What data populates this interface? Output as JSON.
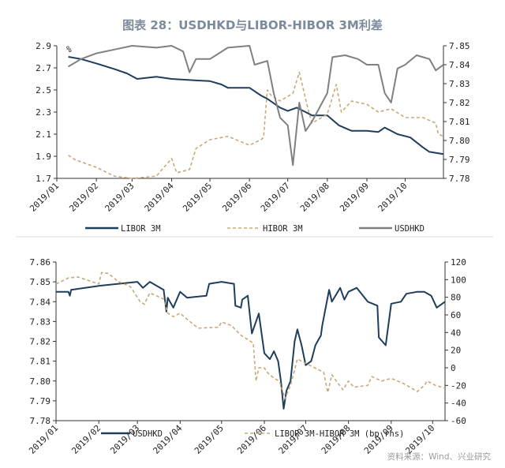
{
  "title": "图表 28：USDHKD与LIBOR-HIBOR 3M利差",
  "source": "资料来源：Wind、兴业研究",
  "chart_data": [
    {
      "type": "line",
      "unit_label": "%",
      "x_ticks": [
        "2019/01",
        "2019/02",
        "2019/03",
        "2019/04",
        "2019/05",
        "2019/06",
        "2019/07",
        "2019/08",
        "2019/09",
        "2019/10"
      ],
      "xlim": [
        "2019-01-01",
        "2019-10-31"
      ],
      "ylim_left": [
        1.7,
        2.9
      ],
      "yticks_left": [
        "1.7",
        "1.9",
        "2.1",
        "2.3",
        "2.5",
        "2.7",
        "2.9"
      ],
      "ylim_right": [
        7.78,
        7.85
      ],
      "yticks_right": [
        "7.78",
        "7.79",
        "7.80",
        "7.81",
        "7.82",
        "7.83",
        "7.84",
        "7.85"
      ],
      "legend_placement": "bottom",
      "grid": false,
      "series": [
        {
          "name": "LIBOR 3M",
          "axis": "left",
          "color": "#1f3d5c",
          "dash": false,
          "points": [
            [
              "2019-01-10",
              2.8
            ],
            [
              "2019-01-20",
              2.78
            ],
            [
              "2019-02-01",
              2.74
            ],
            [
              "2019-02-15",
              2.69
            ],
            [
              "2019-02-25",
              2.65
            ],
            [
              "2019-03-05",
              2.6
            ],
            [
              "2019-03-20",
              2.62
            ],
            [
              "2019-04-01",
              2.6
            ],
            [
              "2019-04-15",
              2.59
            ],
            [
              "2019-05-01",
              2.58
            ],
            [
              "2019-05-10",
              2.55
            ],
            [
              "2019-05-15",
              2.52
            ],
            [
              "2019-06-01",
              2.52
            ],
            [
              "2019-06-10",
              2.45
            ],
            [
              "2019-06-15",
              2.42
            ],
            [
              "2019-06-25",
              2.34
            ],
            [
              "2019-07-01",
              2.31
            ],
            [
              "2019-07-08",
              2.34
            ],
            [
              "2019-07-15",
              2.3
            ],
            [
              "2019-07-20",
              2.27
            ],
            [
              "2019-08-01",
              2.27
            ],
            [
              "2019-08-10",
              2.18
            ],
            [
              "2019-08-20",
              2.13
            ],
            [
              "2019-09-01",
              2.13
            ],
            [
              "2019-09-10",
              2.12
            ],
            [
              "2019-09-15",
              2.16
            ],
            [
              "2019-09-25",
              2.1
            ],
            [
              "2019-10-05",
              2.07
            ],
            [
              "2019-10-15",
              1.98
            ],
            [
              "2019-10-20",
              1.94
            ],
            [
              "2019-10-31",
              1.92
            ]
          ]
        },
        {
          "name": "HIBOR 3M",
          "axis": "left",
          "color": "#c9a878",
          "dash": true,
          "points": [
            [
              "2019-01-10",
              1.91
            ],
            [
              "2019-01-15",
              1.87
            ],
            [
              "2019-02-01",
              1.8
            ],
            [
              "2019-02-15",
              1.72
            ],
            [
              "2019-03-01",
              1.7
            ],
            [
              "2019-03-20",
              1.72
            ],
            [
              "2019-04-01",
              1.88
            ],
            [
              "2019-04-05",
              1.75
            ],
            [
              "2019-04-15",
              1.78
            ],
            [
              "2019-04-20",
              1.97
            ],
            [
              "2019-05-01",
              2.05
            ],
            [
              "2019-05-15",
              2.08
            ],
            [
              "2019-06-01",
              2.0
            ],
            [
              "2019-06-10",
              2.05
            ],
            [
              "2019-06-12",
              2.07
            ],
            [
              "2019-06-15",
              2.5
            ],
            [
              "2019-06-18",
              2.45
            ],
            [
              "2019-06-25",
              2.4
            ],
            [
              "2019-07-05",
              2.47
            ],
            [
              "2019-07-10",
              2.66
            ],
            [
              "2019-07-17",
              2.32
            ],
            [
              "2019-07-20",
              2.2
            ],
            [
              "2019-08-01",
              2.28
            ],
            [
              "2019-08-08",
              2.55
            ],
            [
              "2019-08-12",
              2.3
            ],
            [
              "2019-08-20",
              2.4
            ],
            [
              "2019-09-01",
              2.37
            ],
            [
              "2019-09-10",
              2.3
            ],
            [
              "2019-09-20",
              2.33
            ],
            [
              "2019-10-01",
              2.25
            ],
            [
              "2019-10-15",
              2.25
            ],
            [
              "2019-10-25",
              2.2
            ],
            [
              "2019-10-27",
              2.1
            ],
            [
              "2019-10-31",
              2.08
            ]
          ]
        },
        {
          "name": "USDHKD",
          "axis": "right",
          "color": "#808080",
          "dash": false,
          "points": [
            [
              "2019-01-10",
              7.839
            ],
            [
              "2019-01-20",
              7.843
            ],
            [
              "2019-02-01",
              7.846
            ],
            [
              "2019-02-15",
              7.848
            ],
            [
              "2019-03-01",
              7.85
            ],
            [
              "2019-03-20",
              7.849
            ],
            [
              "2019-04-01",
              7.85
            ],
            [
              "2019-04-10",
              7.847
            ],
            [
              "2019-04-15",
              7.836
            ],
            [
              "2019-04-20",
              7.843
            ],
            [
              "2019-05-01",
              7.843
            ],
            [
              "2019-05-15",
              7.849
            ],
            [
              "2019-06-01",
              7.85
            ],
            [
              "2019-06-05",
              7.84
            ],
            [
              "2019-06-15",
              7.842
            ],
            [
              "2019-06-20",
              7.825
            ],
            [
              "2019-06-25",
              7.812
            ],
            [
              "2019-07-01",
              7.808
            ],
            [
              "2019-07-05",
              7.787
            ],
            [
              "2019-07-10",
              7.82
            ],
            [
              "2019-07-15",
              7.805
            ],
            [
              "2019-07-20",
              7.81
            ],
            [
              "2019-08-01",
              7.825
            ],
            [
              "2019-08-05",
              7.844
            ],
            [
              "2019-08-15",
              7.845
            ],
            [
              "2019-08-25",
              7.843
            ],
            [
              "2019-09-01",
              7.84
            ],
            [
              "2019-09-10",
              7.84
            ],
            [
              "2019-09-15",
              7.825
            ],
            [
              "2019-09-20",
              7.82
            ],
            [
              "2019-09-25",
              7.838
            ],
            [
              "2019-10-01",
              7.84
            ],
            [
              "2019-10-10",
              7.845
            ],
            [
              "2019-10-20",
              7.843
            ],
            [
              "2019-10-25",
              7.837
            ],
            [
              "2019-10-31",
              7.84
            ]
          ]
        }
      ]
    },
    {
      "type": "line",
      "x_ticks": [
        "2019/01",
        "2019/02",
        "2019/03",
        "2019/04",
        "2019/05",
        "2019/06",
        "2019/07",
        "2019/08",
        "2019/09",
        "2019/10"
      ],
      "xlim": [
        "2019-01-01",
        "2019-10-10"
      ],
      "ylim_left": [
        7.78,
        7.86
      ],
      "yticks_left": [
        "7.78",
        "7.79",
        "7.80",
        "7.81",
        "7.82",
        "7.83",
        "7.84",
        "7.85",
        "7.86"
      ],
      "ylim_right": [
        -60,
        120
      ],
      "yticks_right": [
        "-60",
        "-40",
        "-20",
        "0",
        "20",
        "40",
        "60",
        "80",
        "100",
        "120"
      ],
      "legend_placement": "bottom",
      "grid": false,
      "series": [
        {
          "name": "USDHKD",
          "axis": "left",
          "color": "#1f3d5c",
          "dash": false,
          "points": [
            [
              "2019-01-01",
              7.845
            ],
            [
              "2019-01-10",
              7.845
            ],
            [
              "2019-01-11",
              7.843
            ],
            [
              "2019-01-12",
              7.846
            ],
            [
              "2019-02-01",
              7.848
            ],
            [
              "2019-03-01",
              7.85
            ],
            [
              "2019-03-05",
              7.847
            ],
            [
              "2019-03-10",
              7.85
            ],
            [
              "2019-03-20",
              7.846
            ],
            [
              "2019-03-22",
              7.835
            ],
            [
              "2019-03-23",
              7.842
            ],
            [
              "2019-03-27",
              7.837
            ],
            [
              "2019-04-01",
              7.845
            ],
            [
              "2019-04-06",
              7.842
            ],
            [
              "2019-04-20",
              7.843
            ],
            [
              "2019-04-22",
              7.849
            ],
            [
              "2019-05-01",
              7.85
            ],
            [
              "2019-05-10",
              7.849
            ],
            [
              "2019-05-11",
              7.838
            ],
            [
              "2019-05-15",
              7.837
            ],
            [
              "2019-05-16",
              7.841
            ],
            [
              "2019-05-20",
              7.843
            ],
            [
              "2019-05-23",
              7.824
            ],
            [
              "2019-05-28",
              7.834
            ],
            [
              "2019-06-01",
              7.814
            ],
            [
              "2019-06-05",
              7.811
            ],
            [
              "2019-06-08",
              7.815
            ],
            [
              "2019-06-11",
              7.81
            ],
            [
              "2019-06-13",
              7.8
            ],
            [
              "2019-06-15",
              7.786
            ],
            [
              "2019-06-17",
              7.795
            ],
            [
              "2019-06-20",
              7.8
            ],
            [
              "2019-06-23",
              7.82
            ],
            [
              "2019-06-25",
              7.826
            ],
            [
              "2019-06-28",
              7.818
            ],
            [
              "2019-07-01",
              7.808
            ],
            [
              "2019-07-05",
              7.81
            ],
            [
              "2019-07-08",
              7.818
            ],
            [
              "2019-07-12",
              7.823
            ],
            [
              "2019-07-13",
              7.828
            ],
            [
              "2019-07-18",
              7.846
            ],
            [
              "2019-07-20",
              7.84
            ],
            [
              "2019-07-26",
              7.847
            ],
            [
              "2019-07-29",
              7.841
            ],
            [
              "2019-08-01",
              7.845
            ],
            [
              "2019-08-07",
              7.847
            ],
            [
              "2019-08-15",
              7.84
            ],
            [
              "2019-08-22",
              7.838
            ],
            [
              "2019-08-23",
              7.822
            ],
            [
              "2019-08-28",
              7.818
            ],
            [
              "2019-09-01",
              7.839
            ],
            [
              "2019-09-08",
              7.84
            ],
            [
              "2019-09-12",
              7.844
            ],
            [
              "2019-09-20",
              7.845
            ],
            [
              "2019-09-25",
              7.845
            ],
            [
              "2019-09-30",
              7.843
            ],
            [
              "2019-10-04",
              7.837
            ],
            [
              "2019-10-10",
              7.84
            ]
          ]
        },
        {
          "name": "LIBOR 3M-HIBOR 3M (bp rhs)",
          "axis": "right",
          "color": "#c9a878",
          "dash": true,
          "points": [
            [
              "2019-01-01",
              95
            ],
            [
              "2019-01-10",
              102
            ],
            [
              "2019-01-17",
              103
            ],
            [
              "2019-02-01",
              95
            ],
            [
              "2019-02-03",
              108
            ],
            [
              "2019-02-08",
              107
            ],
            [
              "2019-02-15",
              98
            ],
            [
              "2019-02-24",
              92
            ],
            [
              "2019-03-03",
              75
            ],
            [
              "2019-03-06",
              72
            ],
            [
              "2019-03-10",
              85
            ],
            [
              "2019-03-20",
              78
            ],
            [
              "2019-03-23",
              62
            ],
            [
              "2019-03-27",
              58
            ],
            [
              "2019-04-01",
              62
            ],
            [
              "2019-04-06",
              55
            ],
            [
              "2019-04-14",
              45
            ],
            [
              "2019-04-29",
              46
            ],
            [
              "2019-05-01",
              52
            ],
            [
              "2019-05-08",
              48
            ],
            [
              "2019-05-15",
              37
            ],
            [
              "2019-05-24",
              28
            ],
            [
              "2019-05-26",
              -15
            ],
            [
              "2019-05-28",
              0
            ],
            [
              "2019-06-01",
              0
            ],
            [
              "2019-06-03",
              -5
            ],
            [
              "2019-06-08",
              -12
            ],
            [
              "2019-06-12",
              -15
            ],
            [
              "2019-06-16",
              -35
            ],
            [
              "2019-06-20",
              -20
            ],
            [
              "2019-06-25",
              10
            ],
            [
              "2019-07-01",
              5
            ],
            [
              "2019-07-14",
              -5
            ],
            [
              "2019-07-17",
              -28
            ],
            [
              "2019-07-20",
              -8
            ],
            [
              "2019-07-28",
              -25
            ],
            [
              "2019-08-01",
              -15
            ],
            [
              "2019-08-05",
              -22
            ],
            [
              "2019-08-15",
              -20
            ],
            [
              "2019-08-18",
              -10
            ],
            [
              "2019-08-25",
              -15
            ],
            [
              "2019-09-01",
              -12
            ],
            [
              "2019-09-10",
              -18
            ],
            [
              "2019-09-20",
              -27
            ],
            [
              "2019-09-25",
              -20
            ],
            [
              "2019-09-27",
              -15
            ],
            [
              "2019-10-03",
              -20
            ],
            [
              "2019-10-10",
              -23
            ]
          ]
        }
      ]
    }
  ]
}
